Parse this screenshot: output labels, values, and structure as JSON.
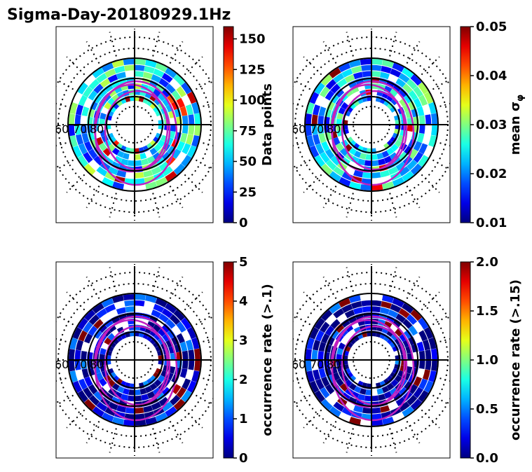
{
  "title": "Sigma-Day-20180929.1Hz",
  "colormap": "jet",
  "chart_data": [
    {
      "type": "heatmap",
      "projection": "polar",
      "ring_labels": [
        "60",
        "70",
        "80"
      ],
      "colorbar": {
        "label": "Data points",
        "vmin": 0,
        "vmax": 160,
        "ticks": [
          0,
          25,
          50,
          75,
          100,
          125,
          150
        ],
        "tick_labels": [
          "0",
          "25",
          "50",
          "75",
          "100",
          "125",
          "150"
        ]
      },
      "base_level": 0.35,
      "hot_level": 0.78
    },
    {
      "type": "heatmap",
      "projection": "polar",
      "ring_labels": [
        "60",
        "70",
        "80"
      ],
      "colorbar": {
        "label": "mean σφ",
        "label_text": "mean σ",
        "label_sub": "φ",
        "vmin": 0.01,
        "vmax": 0.05,
        "ticks": [
          0.01,
          0.02,
          0.03,
          0.04,
          0.05
        ],
        "tick_labels": [
          "0.01",
          "0.02",
          "0.03",
          "0.04",
          "0.05"
        ]
      },
      "base_level": 0.32,
      "hot_level": 0.85
    },
    {
      "type": "heatmap",
      "projection": "polar",
      "ring_labels": [
        "60",
        "70",
        "80"
      ],
      "colorbar": {
        "label": "occurrence rate (>.1)",
        "vmin": 0,
        "vmax": 5,
        "ticks": [
          0,
          1,
          2,
          3,
          4,
          5
        ],
        "tick_labels": [
          "0",
          "1",
          "2",
          "3",
          "4",
          "5"
        ]
      },
      "base_level": 0.05,
      "hot_level": 0.95
    },
    {
      "type": "heatmap",
      "projection": "polar",
      "ring_labels": [
        "60",
        "70",
        "80"
      ],
      "colorbar": {
        "label": "occurrence rate (>.15)",
        "vmin": 0,
        "vmax": 2,
        "ticks": [
          0,
          0.5,
          1,
          1.5,
          2
        ],
        "tick_labels": [
          "0.0",
          "0.5",
          "1.0",
          "1.5",
          "2.0"
        ]
      },
      "base_level": 0.04,
      "hot_level": 0.97
    }
  ]
}
